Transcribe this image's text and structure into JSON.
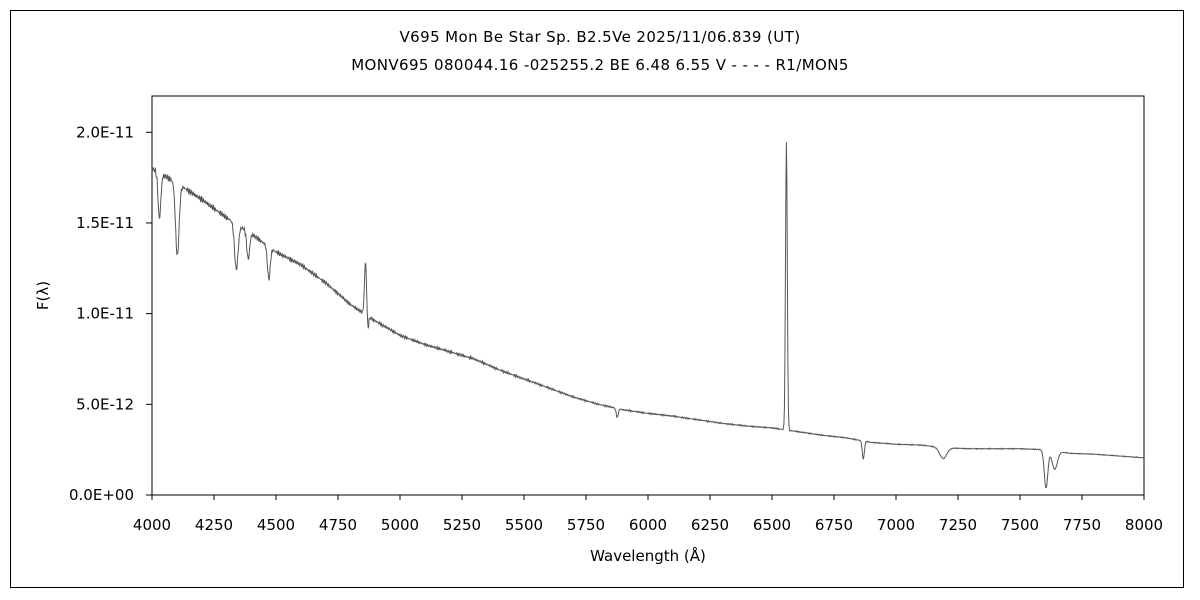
{
  "chart_data": {
    "type": "line",
    "title": "V695 Mon    Be Star    Sp. B2.5Ve    2025/11/06.839 (UT)",
    "subtitle": "MONV695 080044.16 -025255.2 BE 6.48 6.55 V - - - - R1/MON5",
    "xlabel": "Wavelength (Å)",
    "ylabel": "F(λ)",
    "xlim": [
      4000,
      8000
    ],
    "ylim": [
      0,
      2.2e-11
    ],
    "x_ticks": [
      4000,
      4250,
      4500,
      4750,
      5000,
      5250,
      5500,
      5750,
      6000,
      6250,
      6500,
      6750,
      7000,
      7250,
      7500,
      7750,
      8000
    ],
    "x_tick_labels": [
      "4000",
      "4250",
      "4500",
      "4750",
      "5000",
      "5250",
      "5500",
      "5750",
      "6000",
      "6250",
      "6500",
      "6750",
      "7000",
      "7250",
      "7500",
      "7750",
      "8000"
    ],
    "y_ticks": [
      0,
      5e-12,
      1e-11,
      1.5e-11,
      2e-11
    ],
    "y_tick_labels": [
      "0.0E+00",
      "5.0E-12",
      "1.0E-11",
      "1.5E-11",
      "2.0E-11"
    ],
    "grid": false,
    "legend": "none",
    "line_color": "#555555",
    "continuum": [
      [
        4000,
        1.8e-11
      ],
      [
        4100,
        1.72e-11
      ],
      [
        4200,
        1.63e-11
      ],
      [
        4300,
        1.53e-11
      ],
      [
        4400,
        1.44e-11
      ],
      [
        4500,
        1.34e-11
      ],
      [
        4600,
        1.27e-11
      ],
      [
        4700,
        1.17e-11
      ],
      [
        4800,
        1.05e-11
      ],
      [
        4900,
        9.6e-12
      ],
      [
        5000,
        8.8e-12
      ],
      [
        5100,
        8.3e-12
      ],
      [
        5200,
        7.9e-12
      ],
      [
        5300,
        7.5e-12
      ],
      [
        5400,
        6.9e-12
      ],
      [
        5500,
        6.4e-12
      ],
      [
        5600,
        5.9e-12
      ],
      [
        5700,
        5.4e-12
      ],
      [
        5800,
        5e-12
      ],
      [
        5900,
        4.7e-12
      ],
      [
        6000,
        4.5e-12
      ],
      [
        6100,
        4.35e-12
      ],
      [
        6200,
        4.15e-12
      ],
      [
        6300,
        3.95e-12
      ],
      [
        6400,
        3.8e-12
      ],
      [
        6500,
        3.7e-12
      ],
      [
        6600,
        3.5e-12
      ],
      [
        6700,
        3.3e-12
      ],
      [
        6800,
        3.15e-12
      ],
      [
        6900,
        2.9e-12
      ],
      [
        7000,
        2.8e-12
      ],
      [
        7100,
        2.75e-12
      ],
      [
        7200,
        2.6e-12
      ],
      [
        7300,
        2.55e-12
      ],
      [
        7400,
        2.55e-12
      ],
      [
        7500,
        2.55e-12
      ],
      [
        7600,
        2.5e-12
      ],
      [
        7700,
        2.3e-12
      ],
      [
        7800,
        2.25e-12
      ],
      [
        7900,
        2.15e-12
      ],
      [
        8000,
        2.05e-12
      ]
    ],
    "features": [
      {
        "center": 4030,
        "depth": -2.5e-12,
        "width": 8
      },
      {
        "center": 4102,
        "depth": -4e-12,
        "width": 10
      },
      {
        "center": 4340,
        "depth": -2.5e-12,
        "width": 10
      },
      {
        "center": 4388,
        "depth": -1.5e-12,
        "width": 8
      },
      {
        "center": 4471,
        "depth": -1.8e-12,
        "width": 8
      },
      {
        "center": 4861,
        "depth": 2.9e-12,
        "width": 6
      },
      {
        "center": 4870,
        "depth": -8e-13,
        "width": 5
      },
      {
        "center": 5876,
        "depth": -5e-13,
        "width": 6
      },
      {
        "center": 6558,
        "depth": 1.6e-11,
        "width": 5
      },
      {
        "center": 6868,
        "depth": -1e-12,
        "width": 6
      },
      {
        "center": 7190,
        "depth": -6e-13,
        "width": 20
      },
      {
        "center": 7605,
        "depth": -2.1e-12,
        "width": 10
      },
      {
        "center": 7640,
        "depth": -1e-12,
        "width": 15
      }
    ]
  }
}
